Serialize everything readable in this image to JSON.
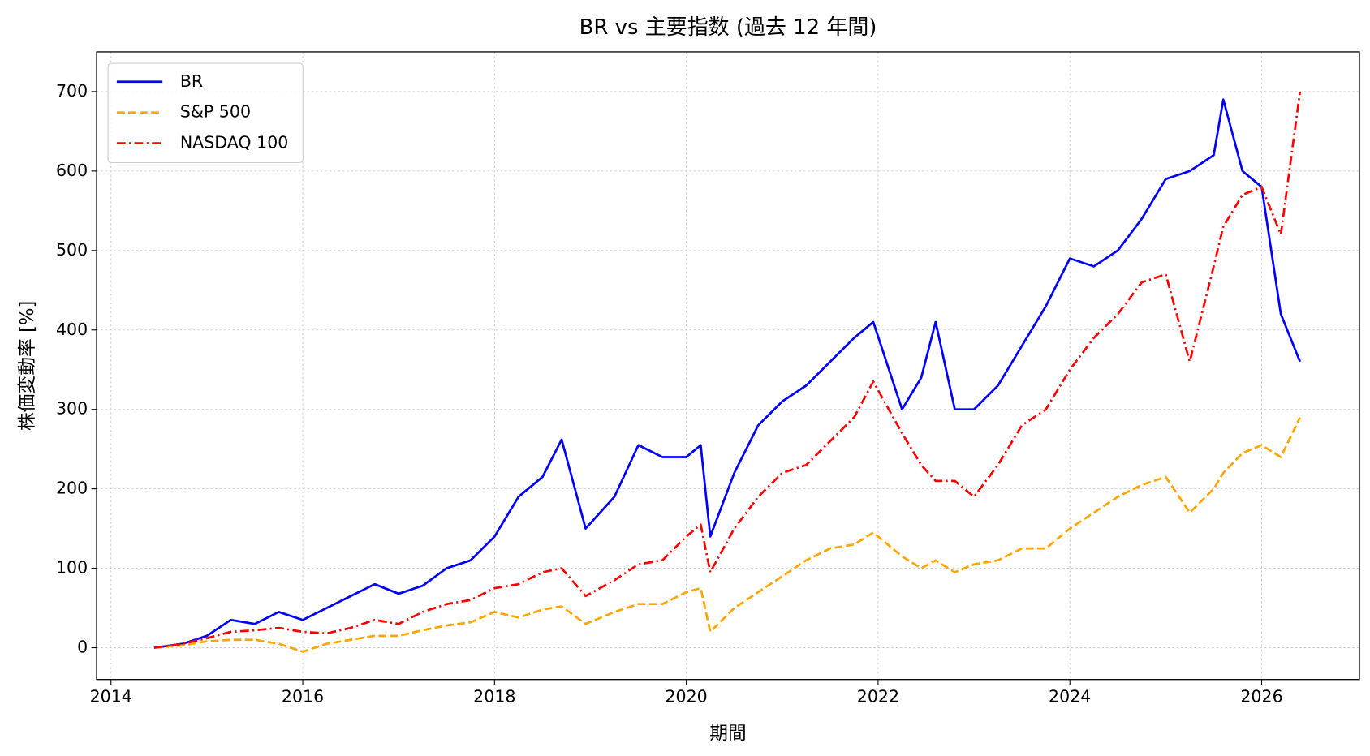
{
  "chart_data": {
    "type": "line",
    "title": "BR vs 主要指数 (過去 12 年間)",
    "x_label": "期間",
    "y_label": "株価変動率 [%]",
    "x": [
      2014.45,
      2014.75,
      2015.0,
      2015.25,
      2015.5,
      2015.75,
      2016.0,
      2016.25,
      2016.5,
      2016.75,
      2017.0,
      2017.25,
      2017.5,
      2017.75,
      2018.0,
      2018.25,
      2018.5,
      2018.7,
      2018.95,
      2019.25,
      2019.5,
      2019.75,
      2020.0,
      2020.15,
      2020.25,
      2020.5,
      2020.75,
      2021.0,
      2021.25,
      2021.5,
      2021.75,
      2021.95,
      2022.25,
      2022.45,
      2022.6,
      2022.8,
      2023.0,
      2023.25,
      2023.5,
      2023.75,
      2024.0,
      2024.25,
      2024.5,
      2024.75,
      2025.0,
      2025.25,
      2025.5,
      2025.6,
      2025.8,
      2026.0,
      2026.2,
      2026.4
    ],
    "series": [
      {
        "name": "BR",
        "color": "#0000ff",
        "linestyle": "solid",
        "values": [
          0,
          5,
          15,
          35,
          30,
          45,
          35,
          50,
          65,
          80,
          68,
          78,
          100,
          110,
          140,
          190,
          215,
          262,
          150,
          190,
          255,
          240,
          240,
          255,
          140,
          220,
          280,
          310,
          330,
          360,
          390,
          410,
          300,
          340,
          410,
          300,
          300,
          330,
          380,
          430,
          490,
          480,
          500,
          540,
          590,
          600,
          620,
          690,
          600,
          580,
          420,
          360
        ]
      },
      {
        "name": "S&P 500",
        "color": "#ffa500",
        "linestyle": "dashed",
        "values": [
          0,
          3,
          8,
          10,
          10,
          5,
          -5,
          5,
          10,
          15,
          15,
          22,
          28,
          32,
          45,
          38,
          48,
          52,
          30,
          45,
          55,
          55,
          70,
          75,
          20,
          50,
          70,
          90,
          110,
          125,
          130,
          145,
          115,
          100,
          110,
          95,
          105,
          110,
          125,
          125,
          150,
          170,
          190,
          205,
          215,
          170,
          200,
          220,
          245,
          255,
          240,
          290
        ]
      },
      {
        "name": "NASDAQ 100",
        "color": "#ff0000",
        "linestyle": "dashdot",
        "values": [
          0,
          5,
          12,
          20,
          22,
          25,
          20,
          18,
          25,
          35,
          30,
          45,
          55,
          60,
          75,
          80,
          95,
          100,
          65,
          85,
          105,
          110,
          140,
          155,
          95,
          150,
          190,
          220,
          230,
          260,
          290,
          335,
          270,
          230,
          210,
          210,
          190,
          230,
          280,
          300,
          350,
          390,
          420,
          460,
          470,
          360,
          480,
          530,
          570,
          580,
          520,
          700
        ]
      }
    ],
    "xlim": [
      2013.85,
      2027.02
    ],
    "xticks": [
      2014,
      2016,
      2018,
      2020,
      2022,
      2024,
      2026
    ],
    "ylim": [
      -40,
      750
    ],
    "yticks": [
      0,
      100,
      200,
      300,
      400,
      500,
      600,
      700
    ],
    "grid": true,
    "legend": "upper-left"
  }
}
